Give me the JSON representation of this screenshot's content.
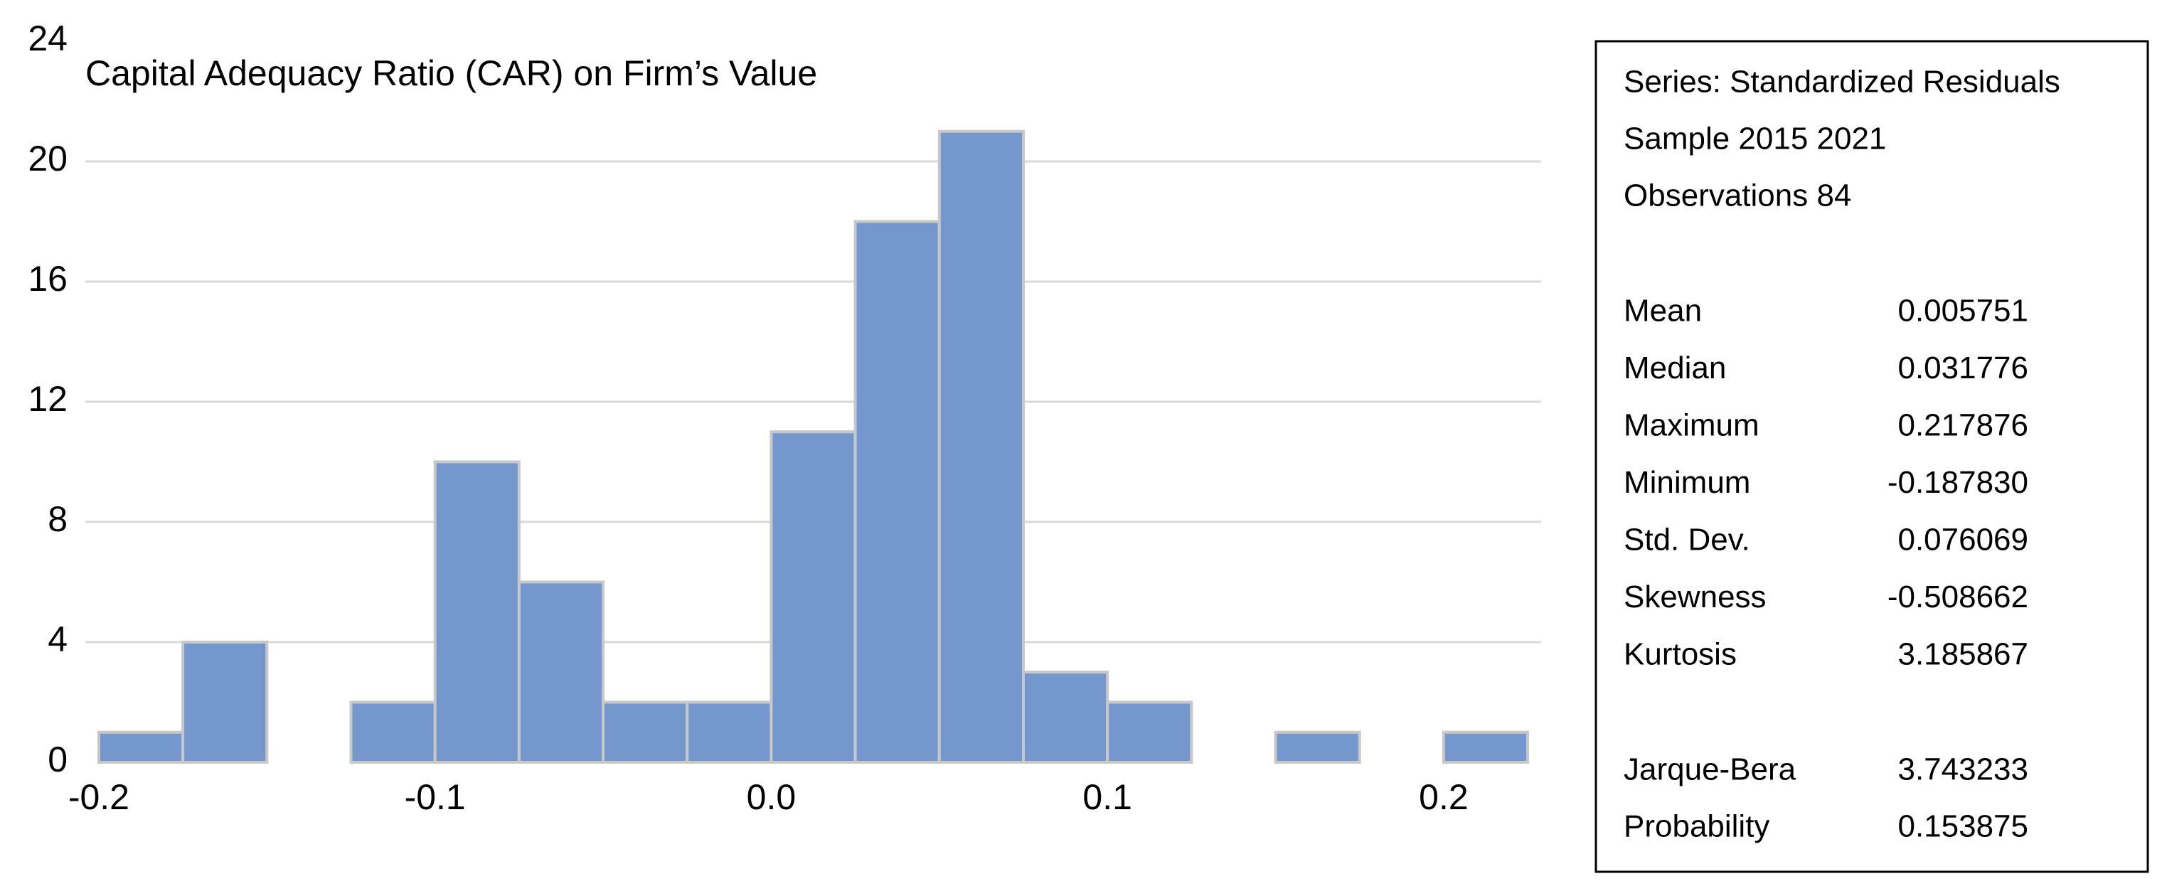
{
  "chart_data": {
    "type": "histogram",
    "title": "Capital Adequacy Ratio (CAR) on Firm’s Value",
    "bins": [
      -0.2,
      -0.175,
      -0.15,
      -0.125,
      -0.1,
      -0.075,
      -0.05,
      -0.025,
      0,
      0.025,
      0.05,
      0.075,
      0.1,
      0.125,
      0.15,
      0.175,
      0.2,
      0.225
    ],
    "values": [
      1,
      4,
      0,
      2,
      10,
      6,
      2,
      2,
      11,
      18,
      21,
      3,
      2,
      0,
      1,
      0,
      1
    ],
    "color": "#7497cd",
    "xlim": [
      -0.204,
      0.229
    ],
    "xticks": [
      -0.2,
      -0.1,
      {
        "value": 0,
        "label": "0.0"
      },
      0.1,
      0.2
    ],
    "ylim": [
      0,
      24
    ],
    "yticks": [
      0,
      4,
      8,
      12,
      16,
      20,
      24
    ],
    "grid": true,
    "stats": {
      "header": [
        "Series: Standardized Residuals",
        "Sample 2015 2021",
        "Observations 84"
      ],
      "rows": [
        [
          "Mean",
          "0.005751"
        ],
        [
          "Median",
          "0.031776"
        ],
        [
          "Maximum",
          "0.217876"
        ],
        [
          "Minimum",
          "-0.187830"
        ],
        [
          "Std. Dev.",
          "0.076069"
        ],
        [
          "Skewness",
          "-0.508662"
        ],
        [
          "Kurtosis",
          "3.185867"
        ]
      ],
      "tests": [
        [
          "Jarque-Bera",
          "3.743233"
        ],
        [
          "Probability",
          "0.153875"
        ]
      ]
    }
  }
}
